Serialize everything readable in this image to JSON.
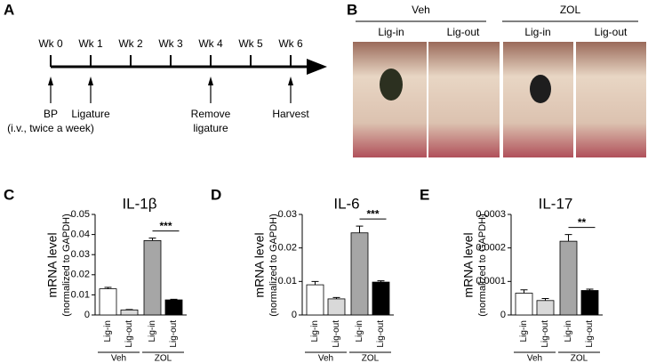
{
  "timeline": {
    "label": "A",
    "weeks": [
      {
        "label": "Wk 0",
        "event": [
          "BP",
          "(i.v., twice a week)"
        ]
      },
      {
        "label": "Wk 1",
        "event": [
          "Ligature"
        ]
      },
      {
        "label": "Wk 2"
      },
      {
        "label": "Wk 3"
      },
      {
        "label": "Wk 4",
        "event": [
          "Remove",
          "ligature"
        ]
      },
      {
        "label": "Wk 5"
      },
      {
        "label": "Wk 6",
        "event": [
          "Harvest"
        ]
      }
    ]
  },
  "photos": {
    "label": "B",
    "groups": [
      {
        "name": "Veh",
        "columns": [
          "Lig-in",
          "Lig-out"
        ]
      },
      {
        "name": "ZOL",
        "columns": [
          "Lig-in",
          "Lig-out"
        ]
      }
    ]
  },
  "chart_data": [
    {
      "type": "bar",
      "label": "C",
      "title": "IL-1β",
      "ylabel": [
        "mRNA level",
        "(normalized to GAPDH)"
      ],
      "categories": [
        "Lig-in",
        "Lig-out",
        "Lig-in",
        "Lig-out"
      ],
      "groups": [
        "Veh",
        "ZOL"
      ],
      "values": [
        0.013,
        0.0025,
        0.037,
        0.0075
      ],
      "errors": [
        0.0007,
        0.0002,
        0.0012,
        0.0003
      ],
      "colors": [
        "#ffffff",
        "#d9d9d9",
        "#a6a6a6",
        "#000000"
      ],
      "ylim": [
        0,
        0.05
      ],
      "yticks": [
        0,
        0.01,
        0.02,
        0.03,
        0.04,
        0.05
      ],
      "significance": "***"
    },
    {
      "type": "bar",
      "label": "D",
      "title": "IL-6",
      "ylabel": [
        "mRNA level",
        "(normalized to GAPDH)"
      ],
      "categories": [
        "Lig-in",
        "Lig-out",
        "Lig-in",
        "Lig-out"
      ],
      "groups": [
        "Veh",
        "ZOL"
      ],
      "values": [
        0.009,
        0.0048,
        0.0245,
        0.0098
      ],
      "errors": [
        0.001,
        0.0004,
        0.002,
        0.0004
      ],
      "colors": [
        "#ffffff",
        "#d9d9d9",
        "#a6a6a6",
        "#000000"
      ],
      "ylim": [
        0,
        0.03
      ],
      "yticks": [
        0,
        0.01,
        0.02,
        0.03
      ],
      "significance": "***"
    },
    {
      "type": "bar",
      "label": "E",
      "title": "IL-17",
      "ylabel": [
        "mRNA level",
        "(normalized to GAPDH)"
      ],
      "categories": [
        "Lig-in",
        "Lig-out",
        "Lig-in",
        "Lig-out"
      ],
      "groups": [
        "Veh",
        "ZOL"
      ],
      "values": [
        6.5e-05,
        4.3e-05,
        0.00022,
        7.3e-05
      ],
      "errors": [
        1e-05,
        6e-06,
        2e-05,
        4e-06
      ],
      "colors": [
        "#ffffff",
        "#d9d9d9",
        "#a6a6a6",
        "#000000"
      ],
      "ylim": [
        0,
        0.0003
      ],
      "yticks": [
        0,
        0.0001,
        0.0002,
        0.0003
      ],
      "significance": "**"
    }
  ]
}
